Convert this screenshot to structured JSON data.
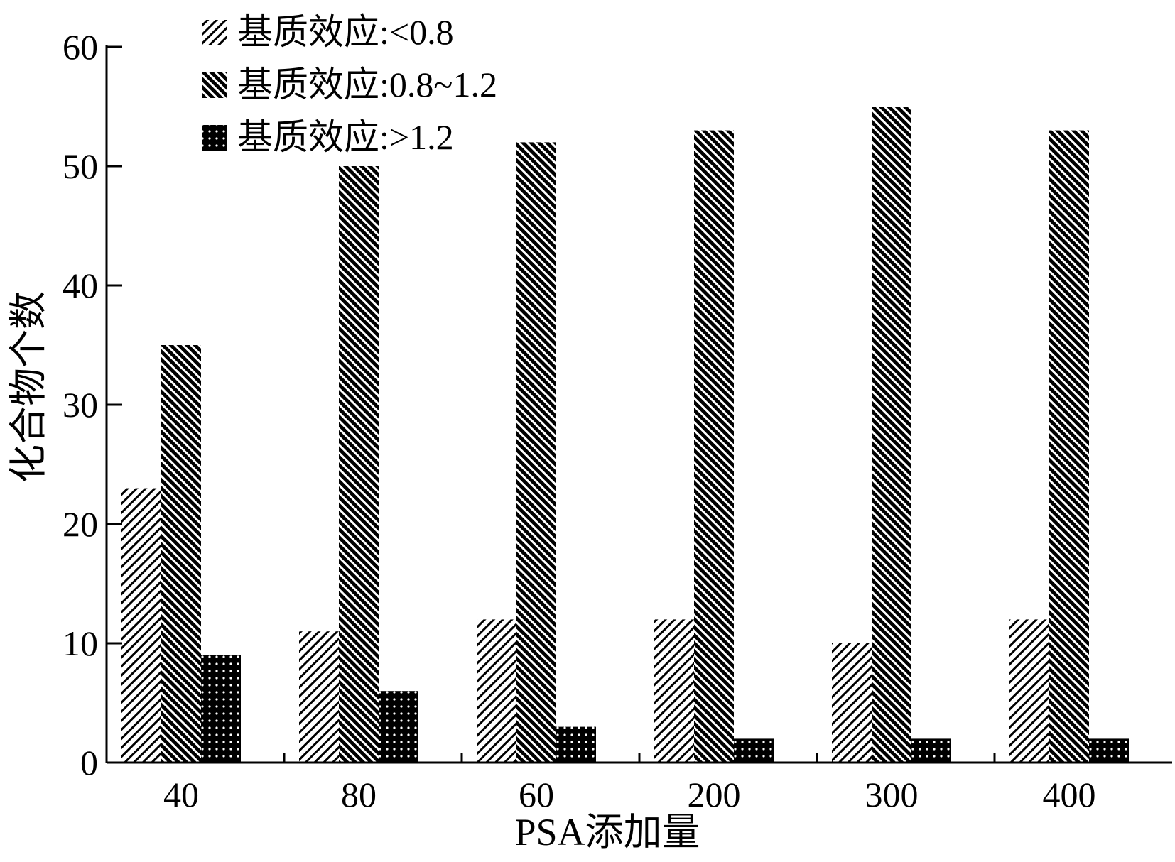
{
  "chart_data": {
    "type": "bar",
    "xlabel": "PSA添加量",
    "ylabel": "化合物个数",
    "categories": [
      "40",
      "80",
      "60",
      "200",
      "300",
      "400"
    ],
    "ylim": [
      0,
      60
    ],
    "yticks": [
      0,
      10,
      20,
      30,
      40,
      50,
      60
    ],
    "grid": false,
    "legend_position": "top-left",
    "series": [
      {
        "name": "基质效应:<0.8",
        "pattern": "fine-diagonal-hatch",
        "values": [
          23,
          11,
          12,
          12,
          10,
          12
        ]
      },
      {
        "name": "基质效应:0.8~1.2",
        "pattern": "dense-diagonal-hatch",
        "values": [
          35,
          50,
          52,
          53,
          55,
          53
        ]
      },
      {
        "name": "基质效应:>1.2",
        "pattern": "black-with-white-dots",
        "values": [
          9,
          6,
          3,
          2,
          2,
          2
        ]
      }
    ],
    "colors": {
      "axis": "#000000",
      "fill_dark": "#000000",
      "fill_light": "#ffffff"
    }
  }
}
